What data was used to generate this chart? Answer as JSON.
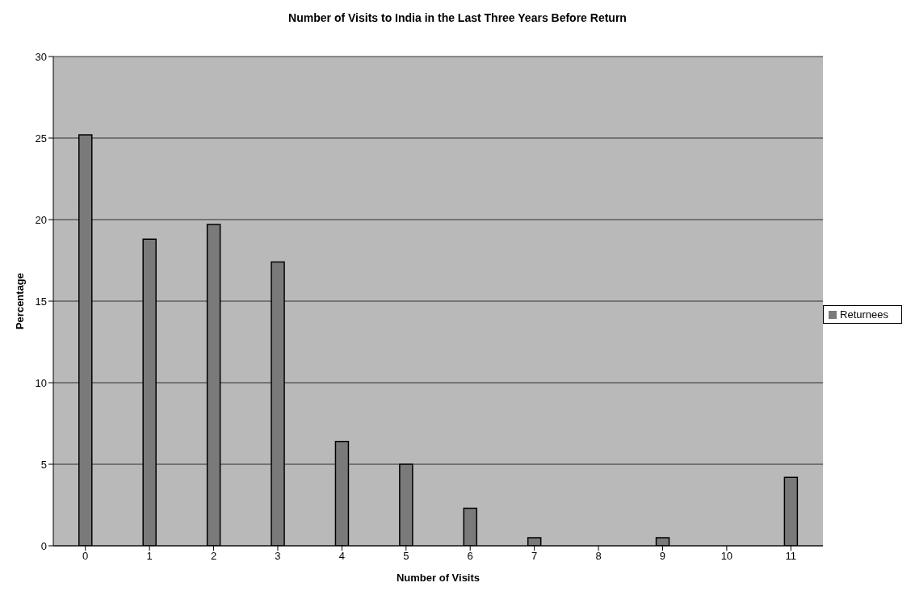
{
  "chart_data": {
    "type": "bar",
    "title": "Number of Visits to India in the Last Three Years Before Return",
    "xlabel": "Number of Visits",
    "ylabel": "Percentage",
    "categories": [
      "0",
      "1",
      "2",
      "3",
      "4",
      "5",
      "6",
      "7",
      "8",
      "9",
      "10",
      "11"
    ],
    "series": [
      {
        "name": "Returnees",
        "color": "#7a7a7a",
        "values": [
          25.2,
          18.8,
          19.7,
          17.4,
          6.4,
          5.0,
          2.3,
          0.5,
          0,
          0.5,
          0,
          4.2
        ]
      }
    ],
    "ylim": [
      0,
      30
    ],
    "yticks": [
      0,
      5,
      10,
      15,
      20,
      25,
      30
    ],
    "grid": "y",
    "legend": "right"
  }
}
